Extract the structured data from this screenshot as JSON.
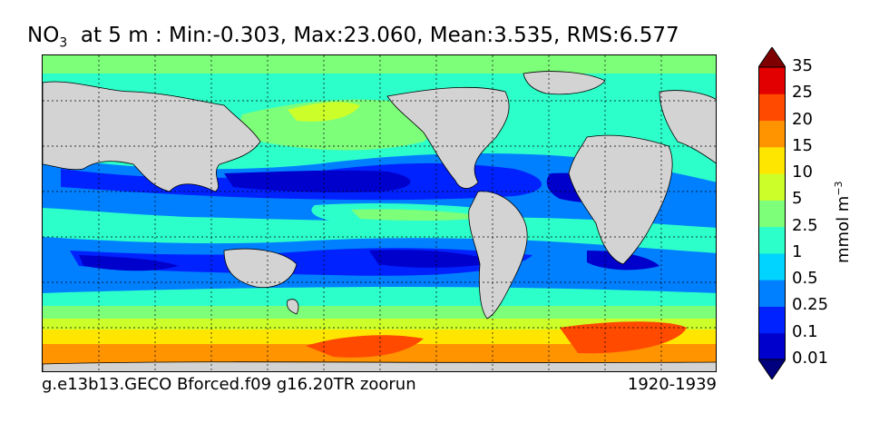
{
  "chart_data": {
    "type": "heatmap",
    "title": {
      "variable": "NO",
      "subscript": "3",
      "rest": "  at 5 m : Min:-0.303, Max:23.060, Mean:3.535, RMS:6.577"
    },
    "stats": {
      "min": -0.303,
      "max": 23.06,
      "mean": 3.535,
      "rms": 6.577
    },
    "depth": "5 m",
    "projection": "global cylindrical map, ocean field with grey land",
    "grid": true,
    "footer_left": "g.e13b13.GECO Bforced.f09 g16.20TR zoorun",
    "footer_right": "1920-1939",
    "colorbar": {
      "unit_base": "mmol m",
      "unit_exp": "−3",
      "levels": [
        "0.01",
        "0.1",
        "0.25",
        "0.5",
        "1",
        "2.5",
        "5",
        "10",
        "15",
        "20",
        "25",
        "35"
      ],
      "colors": [
        "#00007f",
        "#0000cc",
        "#0022ff",
        "#0080ff",
        "#00d4ff",
        "#2cffca",
        "#7dff7a",
        "#ccff2a",
        "#ffe600",
        "#ff9400",
        "#ff4a00",
        "#e30000",
        "#7f0000"
      ],
      "extend": "both"
    }
  }
}
